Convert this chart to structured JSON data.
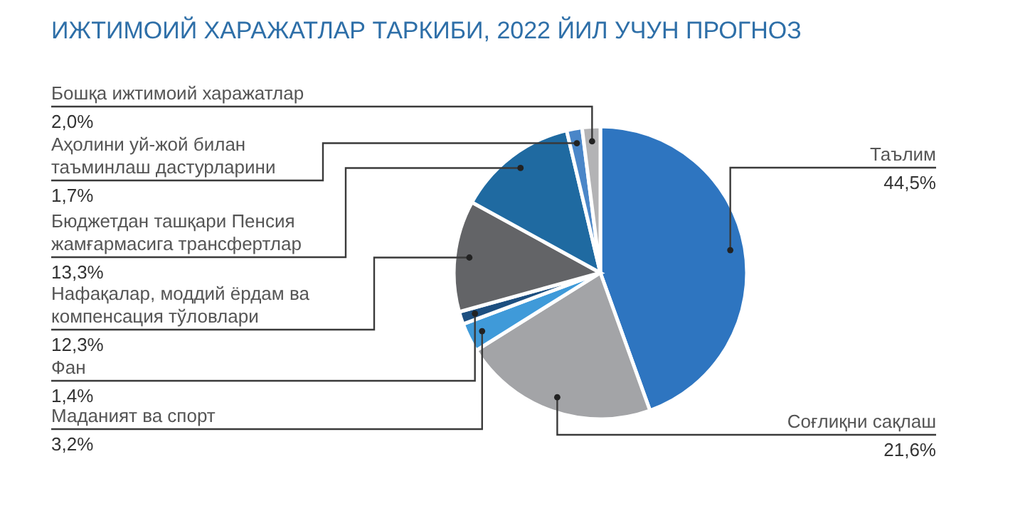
{
  "chart_data": {
    "type": "pie",
    "title": "ИЖТИМОИЙ ХАРАЖАТЛАР ТАРКИБИ, 2022 ЙИЛ УЧУН ПРОГНОЗ",
    "categories": [
      "Таълим",
      "Соғлиқни сақлаш",
      "Маданият ва спорт",
      "Фан",
      "Нафақалар, моддий ёрдам ва компенсация тўловлари",
      "Бюджетдан ташқари Пенсия жамғармасига трансфертлар",
      "Аҳолини уй-жой билан таъминлаш дастурларини",
      "Бошқа ижтимоий харажатлар"
    ],
    "values": [
      44.5,
      21.6,
      3.2,
      1.4,
      12.3,
      13.3,
      1.7,
      2.0
    ],
    "colors": [
      "#2e75c0",
      "#a3a4a7",
      "#3f9ad9",
      "#1d4f80",
      "#636467",
      "#1f6aa1",
      "#4a86c8",
      "#b3b3b5"
    ],
    "value_labels": [
      "44,5%",
      "21,6%",
      "3,2%",
      "1,4%",
      "12,3%",
      "13,3%",
      "1,7%",
      "2,0%"
    ]
  }
}
